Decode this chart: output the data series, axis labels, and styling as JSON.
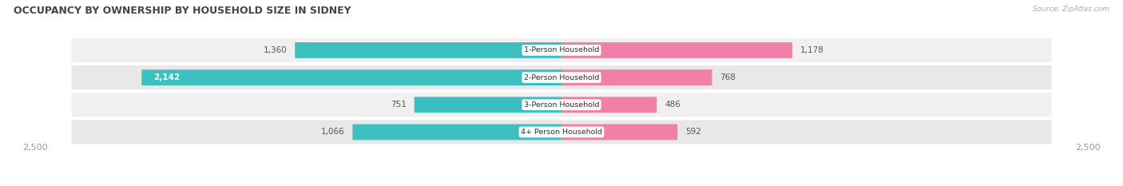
{
  "title": "OCCUPANCY BY OWNERSHIP BY HOUSEHOLD SIZE IN SIDNEY",
  "source": "Source: ZipAtlas.com",
  "categories": [
    "1-Person Household",
    "2-Person Household",
    "3-Person Household",
    "4+ Person Household"
  ],
  "owner_values": [
    1360,
    2142,
    751,
    1066
  ],
  "renter_values": [
    1178,
    768,
    486,
    592
  ],
  "max_scale": 2500,
  "owner_color": "#3DBFBF",
  "renter_color": "#F080A8",
  "bg_color": "#FFFFFF",
  "row_bg_colors": [
    "#F0F0F0",
    "#E8E8E8",
    "#F0F0F0",
    "#E8E8E8"
  ],
  "label_color": "#555555",
  "title_color": "#444444",
  "axis_label_color": "#999999",
  "source_color": "#AAAAAA",
  "owner_label_inside_threshold": 2000
}
